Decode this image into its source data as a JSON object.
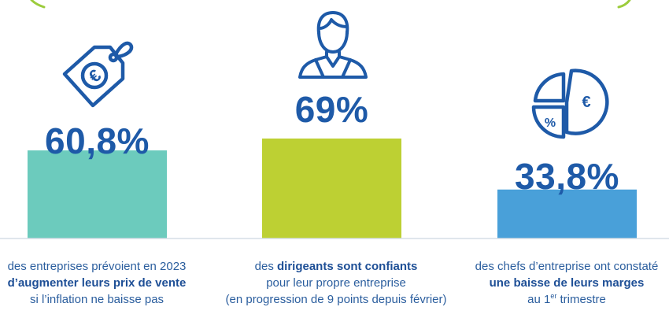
{
  "chart_data": {
    "type": "bar",
    "categories": [
      "des entreprises prévoient en 2023 d’augmenter leurs prix de vente si l’inflation ne baisse pas",
      "des dirigeants sont confiants pour leur propre entreprise (en progression de 9 points depuis février)",
      "des chefs d’entreprise ont constaté une baisse de leurs marges au 1er trimestre"
    ],
    "values": [
      60.8,
      69,
      33.8
    ],
    "data_labels": [
      "60,8%",
      "69%",
      "33,8%"
    ],
    "ylim": [
      0,
      100
    ],
    "grid": false,
    "legend": "none",
    "colors": [
      "#6ccbbd",
      "#bdd033",
      "#49a0d9"
    ]
  },
  "captions": [
    {
      "line1": "des entreprises prévoient en 2023",
      "line2_bold": "d’augmenter leurs prix de vente",
      "line3": "si l’inflation ne baisse pas"
    },
    {
      "line1_pre": "des ",
      "line1_bold": "dirigeants sont confiants",
      "line2": "pour leur propre entreprise",
      "line3": "(en progression de 9 points depuis février)"
    },
    {
      "line1": "des chefs d’entreprise ont constaté",
      "line2_bold": "une baisse de leurs marges",
      "line3_pre": "au 1",
      "line3_sup": "er",
      "line3_post": " trimestre"
    }
  ],
  "icons": [
    "euro-price-tag-icon",
    "business-person-icon",
    "pie-chart-euro-percent-icon"
  ],
  "icon_text": {
    "euro": "€",
    "percent": "%"
  },
  "colors": {
    "text": "#1e5aa8",
    "icon": "#1e5aa8",
    "baseline": "#d5dde6",
    "accent_arc": "#9ccc3c"
  }
}
